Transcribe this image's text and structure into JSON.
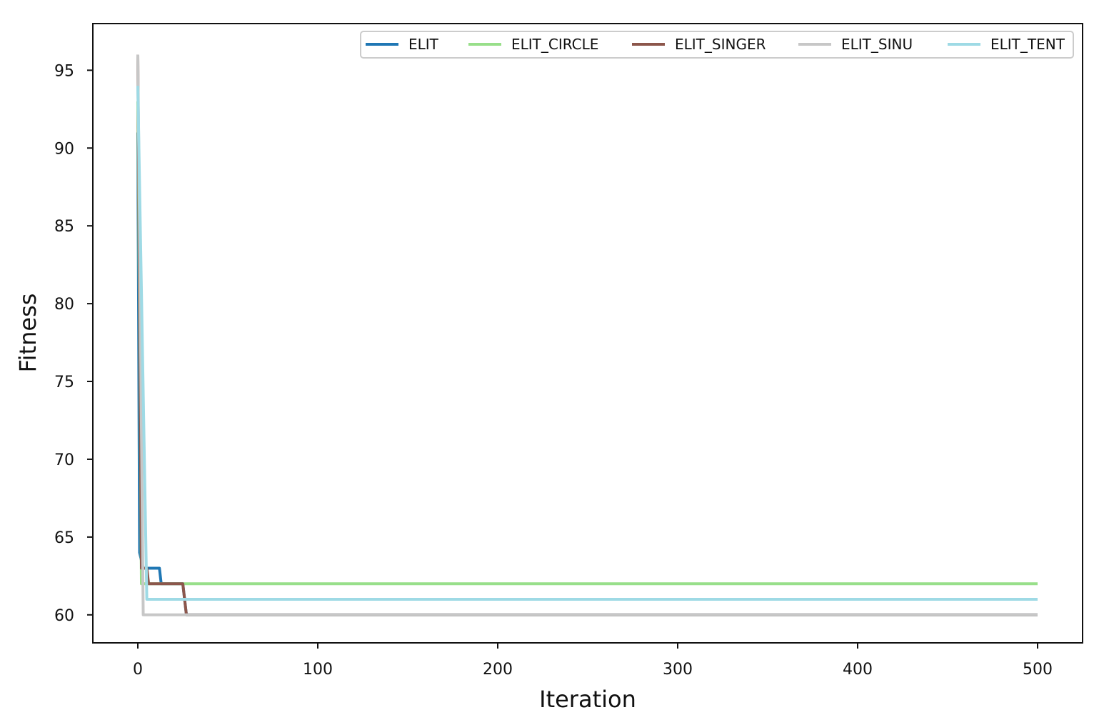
{
  "chart_data": {
    "type": "line",
    "title": "",
    "xlabel": "Iteration",
    "ylabel": "Fitness",
    "xlim": [
      -25,
      525
    ],
    "ylim": [
      58.2,
      98.0
    ],
    "xticks": [
      0,
      100,
      200,
      300,
      400,
      500
    ],
    "yticks": [
      60,
      65,
      70,
      75,
      80,
      85,
      90,
      95
    ],
    "grid": false,
    "legend": {
      "placement": "top-right",
      "ncol": 5
    },
    "series": [
      {
        "name": "ELIT",
        "color": "#1f77b4",
        "points": [
          [
            0,
            91
          ],
          [
            1,
            64
          ],
          [
            3,
            63
          ],
          [
            12,
            63
          ],
          [
            13,
            62
          ],
          [
            25,
            62
          ],
          [
            27,
            60
          ],
          [
            500,
            60
          ]
        ]
      },
      {
        "name": "ELIT_CIRCLE",
        "color": "#98df8a",
        "points": [
          [
            0,
            93
          ],
          [
            2,
            62
          ],
          [
            500,
            62
          ]
        ]
      },
      {
        "name": "ELIT_SINGER",
        "color": "#8c564b",
        "points": [
          [
            0,
            96
          ],
          [
            2,
            63
          ],
          [
            5,
            63
          ],
          [
            6,
            62
          ],
          [
            25,
            62
          ],
          [
            27,
            60
          ],
          [
            500,
            60
          ]
        ]
      },
      {
        "name": "ELIT_SINU",
        "color": "#c7c7c7",
        "points": [
          [
            0,
            96
          ],
          [
            3,
            60
          ],
          [
            500,
            60
          ]
        ]
      },
      {
        "name": "ELIT_TENT",
        "color": "#9edae5",
        "points": [
          [
            0,
            94
          ],
          [
            5,
            61
          ],
          [
            500,
            61
          ]
        ]
      }
    ]
  }
}
